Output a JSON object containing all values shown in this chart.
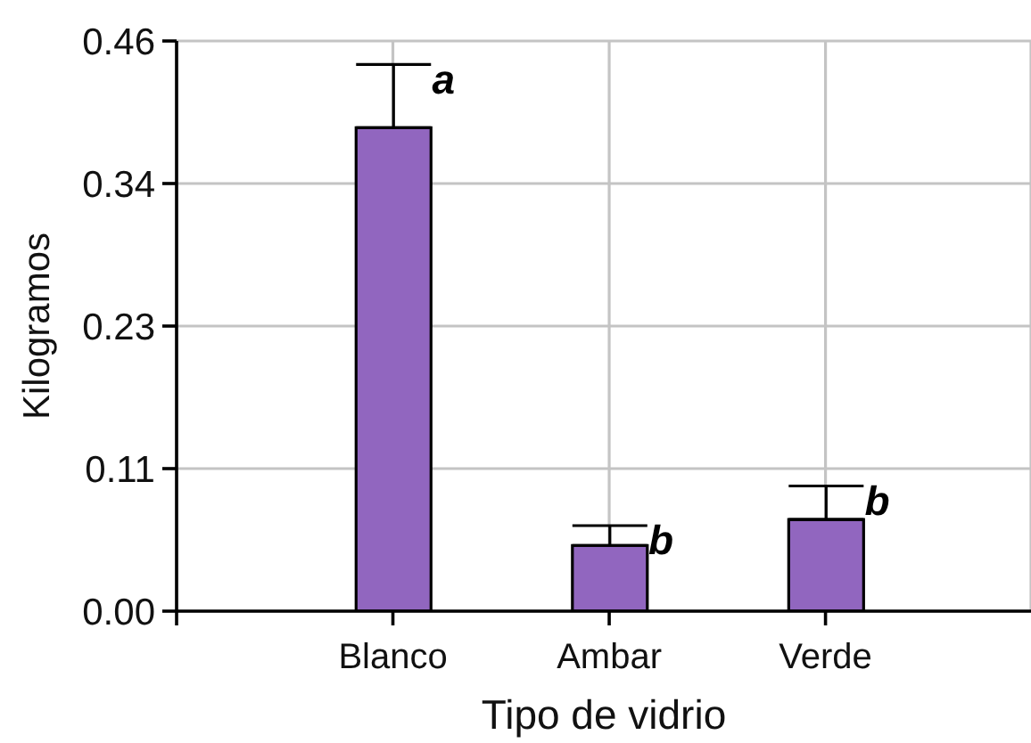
{
  "chart_data": {
    "type": "bar",
    "xlabel": "Tipo de vidrio",
    "ylabel": "Kilogramos",
    "categories": [
      "Blanco",
      "Ambar",
      "Verde"
    ],
    "values": [
      0.39,
      0.053,
      0.074
    ],
    "errors": [
      [
        0.39,
        0.441
      ],
      [
        0.053,
        0.069
      ],
      [
        0.074,
        0.101
      ]
    ],
    "color": "#9166bf",
    "ylim": [
      0,
      0.46
    ],
    "yticks": [
      {
        "value": 0,
        "label": "0.00"
      },
      {
        "value": 0.115,
        "label": "0.11"
      },
      0.23,
      {
        "value": 0.345,
        "label": "0.34"
      },
      0.46
    ],
    "grid": true,
    "annotations": [
      {
        "text": "a",
        "x": "Blanco",
        "y": 0.441
      },
      {
        "text": "b",
        "x": "Ambar",
        "y": 0.069
      },
      {
        "text": "b",
        "x": "Verde",
        "y": 0.101
      }
    ]
  }
}
